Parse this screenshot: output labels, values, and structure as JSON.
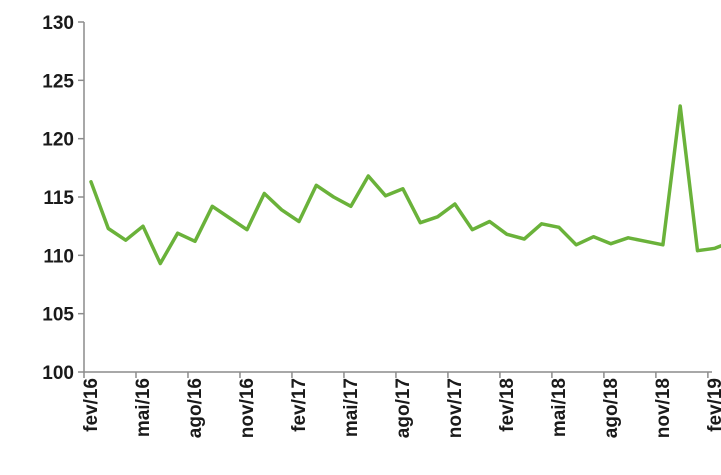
{
  "chart_data": {
    "type": "line",
    "title": "",
    "xlabel": "",
    "ylabel": "",
    "ylim": [
      100,
      130
    ],
    "yticks": [
      "100",
      "105",
      "110",
      "115",
      "120",
      "125",
      "130"
    ],
    "grid": false,
    "legend": "none",
    "x_tick_labels": [
      "fev/16",
      "mai/16",
      "ago/16",
      "nov/16",
      "fev/17",
      "mai/17",
      "ago/17",
      "nov/17",
      "fev/18",
      "mai/18",
      "ago/18",
      "nov/18",
      "fev/19"
    ],
    "x": [
      "2016-02",
      "2016-03",
      "2016-04",
      "2016-05",
      "2016-06",
      "2016-07",
      "2016-08",
      "2016-09",
      "2016-10",
      "2016-11",
      "2016-12",
      "2017-01",
      "2017-02",
      "2017-03",
      "2017-04",
      "2017-05",
      "2017-06",
      "2017-07",
      "2017-08",
      "2017-09",
      "2017-10",
      "2017-11",
      "2017-12",
      "2018-01",
      "2018-02",
      "2018-03",
      "2018-04",
      "2018-05",
      "2018-06",
      "2018-07",
      "2018-08",
      "2018-09",
      "2018-10",
      "2018-11",
      "2018-12",
      "2019-01",
      "2019-02",
      "2019-03"
    ],
    "series": [
      {
        "color": "#6ab23a",
        "values": [
          116.3,
          112.3,
          111.3,
          112.5,
          109.3,
          111.9,
          111.2,
          114.2,
          113.2,
          112.2,
          115.3,
          113.9,
          112.9,
          116.0,
          115.0,
          114.2,
          116.8,
          115.1,
          115.7,
          112.8,
          113.3,
          114.4,
          112.2,
          112.9,
          111.8,
          111.4,
          112.7,
          112.4,
          110.9,
          111.6,
          111.0,
          111.5,
          111.2,
          110.9,
          122.8,
          110.4,
          110.6,
          111.2
        ]
      }
    ]
  }
}
